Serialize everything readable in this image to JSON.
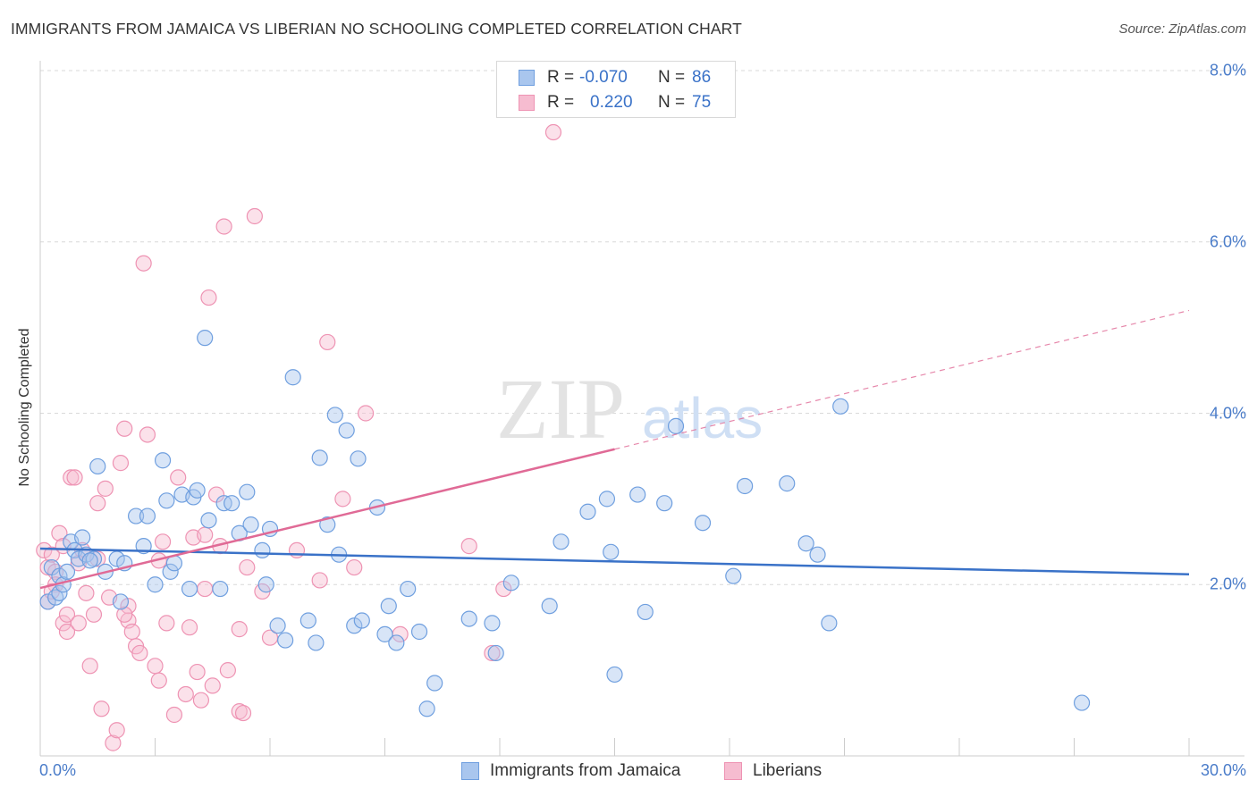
{
  "title": "IMMIGRANTS FROM JAMAICA VS LIBERIAN NO SCHOOLING COMPLETED CORRELATION CHART",
  "source": "Source: ZipAtlas.com",
  "watermark": {
    "zip": "ZIP",
    "atlas": "atlas"
  },
  "colors": {
    "blue": "#3a72c8",
    "blue_fill": "#a9c6ee",
    "blue_stroke": "#6f9fdf",
    "pink": "#e06a96",
    "pink_fill": "#f6bcd0",
    "pink_stroke": "#ee93b3",
    "grid": "#d9d9d9",
    "axis_text": "#4a7cc9"
  },
  "stats": {
    "r_label": "R =",
    "n_label": "N =",
    "rows": [
      {
        "r": "-0.070",
        "n": "86"
      },
      {
        "r": "0.220",
        "n": "75"
      }
    ]
  },
  "legend": [
    {
      "label": "Immigrants from Jamaica"
    },
    {
      "label": "Liberians"
    }
  ],
  "chart_data": {
    "type": "scatter",
    "title": "IMMIGRANTS FROM JAMAICA VS LIBERIAN NO SCHOOLING COMPLETED CORRELATION CHART",
    "xlabel": "",
    "ylabel": "No Schooling Completed",
    "xlim": [
      0,
      30
    ],
    "ylim": [
      0,
      8
    ],
    "x_tick_labels": [
      {
        "value": 0,
        "label": "0.0%"
      },
      {
        "value": 30,
        "label": "30.0%"
      }
    ],
    "y_tick_labels": [
      {
        "value": 2,
        "label": "2.0%"
      },
      {
        "value": 4,
        "label": "4.0%"
      },
      {
        "value": 6,
        "label": "6.0%"
      },
      {
        "value": 8,
        "label": "8.0%"
      }
    ],
    "grid": true,
    "series": [
      {
        "name": "Immigrants from Jamaica",
        "color": "blue",
        "trend": {
          "x0": 0,
          "y0": 2.42,
          "x1": 30,
          "y1": 2.12,
          "dashed_from": 30
        },
        "points": [
          [
            0.2,
            1.8
          ],
          [
            0.3,
            2.2
          ],
          [
            0.4,
            1.85
          ],
          [
            0.5,
            1.9
          ],
          [
            0.5,
            2.1
          ],
          [
            0.6,
            2.0
          ],
          [
            0.7,
            2.15
          ],
          [
            0.8,
            2.5
          ],
          [
            0.9,
            2.4
          ],
          [
            1.0,
            2.3
          ],
          [
            1.1,
            2.55
          ],
          [
            1.2,
            2.35
          ],
          [
            1.4,
            2.3
          ],
          [
            1.5,
            3.38
          ],
          [
            1.7,
            2.15
          ],
          [
            2.0,
            2.3
          ],
          [
            2.2,
            2.25
          ],
          [
            2.5,
            2.8
          ],
          [
            2.7,
            2.45
          ],
          [
            2.8,
            2.8
          ],
          [
            3.0,
            2.0
          ],
          [
            3.2,
            3.45
          ],
          [
            3.3,
            2.98
          ],
          [
            3.4,
            2.15
          ],
          [
            3.5,
            2.25
          ],
          [
            3.7,
            3.05
          ],
          [
            3.9,
            1.95
          ],
          [
            4.0,
            3.02
          ],
          [
            4.1,
            3.1
          ],
          [
            4.3,
            4.88
          ],
          [
            4.4,
            2.75
          ],
          [
            4.7,
            1.95
          ],
          [
            4.8,
            2.95
          ],
          [
            5.0,
            2.95
          ],
          [
            5.2,
            2.6
          ],
          [
            5.4,
            3.08
          ],
          [
            5.5,
            2.7
          ],
          [
            5.8,
            2.4
          ],
          [
            5.9,
            2.0
          ],
          [
            6.0,
            2.65
          ],
          [
            6.2,
            1.52
          ],
          [
            6.4,
            1.35
          ],
          [
            6.6,
            4.42
          ],
          [
            7.0,
            1.58
          ],
          [
            7.2,
            1.32
          ],
          [
            7.3,
            3.48
          ],
          [
            7.5,
            2.7
          ],
          [
            7.7,
            3.98
          ],
          [
            7.8,
            2.35
          ],
          [
            8.0,
            3.8
          ],
          [
            8.2,
            1.52
          ],
          [
            8.3,
            3.47
          ],
          [
            8.4,
            1.58
          ],
          [
            8.8,
            2.9
          ],
          [
            9.0,
            1.42
          ],
          [
            9.1,
            1.75
          ],
          [
            9.3,
            1.32
          ],
          [
            9.6,
            1.95
          ],
          [
            9.9,
            1.45
          ],
          [
            10.1,
            0.55
          ],
          [
            10.3,
            0.85
          ],
          [
            11.2,
            1.6
          ],
          [
            11.8,
            1.55
          ],
          [
            11.9,
            1.2
          ],
          [
            12.3,
            2.02
          ],
          [
            13.3,
            1.75
          ],
          [
            13.6,
            2.5
          ],
          [
            14.3,
            2.85
          ],
          [
            14.8,
            3.0
          ],
          [
            14.9,
            2.38
          ],
          [
            15.0,
            0.95
          ],
          [
            15.6,
            3.05
          ],
          [
            15.8,
            1.68
          ],
          [
            16.3,
            2.95
          ],
          [
            16.6,
            3.85
          ],
          [
            17.3,
            2.72
          ],
          [
            18.1,
            2.1
          ],
          [
            18.4,
            3.15
          ],
          [
            19.5,
            3.18
          ],
          [
            20.0,
            2.48
          ],
          [
            20.3,
            2.35
          ],
          [
            20.6,
            1.55
          ],
          [
            20.9,
            4.08
          ],
          [
            27.2,
            0.62
          ],
          [
            1.3,
            2.28
          ],
          [
            2.1,
            1.8
          ]
        ]
      },
      {
        "name": "Liberians",
        "color": "pink",
        "trend": {
          "x0": 0,
          "y0": 1.96,
          "x1": 30,
          "y1": 5.2,
          "dashed_from": 15
        },
        "points": [
          [
            0.1,
            2.4
          ],
          [
            0.2,
            2.2
          ],
          [
            0.2,
            1.8
          ],
          [
            0.3,
            2.35
          ],
          [
            0.4,
            2.15
          ],
          [
            0.5,
            2.6
          ],
          [
            0.6,
            2.45
          ],
          [
            0.6,
            1.55
          ],
          [
            0.7,
            1.45
          ],
          [
            0.7,
            1.65
          ],
          [
            0.8,
            3.25
          ],
          [
            0.9,
            3.25
          ],
          [
            1.0,
            1.55
          ],
          [
            1.1,
            2.4
          ],
          [
            1.2,
            1.9
          ],
          [
            1.3,
            1.05
          ],
          [
            1.4,
            1.65
          ],
          [
            1.5,
            2.3
          ],
          [
            1.5,
            2.95
          ],
          [
            1.6,
            0.55
          ],
          [
            1.7,
            3.12
          ],
          [
            1.8,
            1.85
          ],
          [
            1.9,
            0.15
          ],
          [
            2.0,
            0.3
          ],
          [
            2.1,
            3.42
          ],
          [
            2.2,
            3.82
          ],
          [
            2.3,
            1.75
          ],
          [
            2.3,
            1.58
          ],
          [
            2.4,
            1.45
          ],
          [
            2.5,
            1.28
          ],
          [
            2.6,
            1.2
          ],
          [
            2.7,
            5.75
          ],
          [
            2.8,
            3.75
          ],
          [
            3.0,
            1.05
          ],
          [
            3.1,
            0.88
          ],
          [
            3.2,
            2.5
          ],
          [
            3.3,
            1.55
          ],
          [
            3.5,
            0.48
          ],
          [
            3.6,
            3.25
          ],
          [
            3.8,
            0.72
          ],
          [
            3.9,
            1.5
          ],
          [
            4.0,
            2.55
          ],
          [
            4.1,
            0.98
          ],
          [
            4.2,
            0.65
          ],
          [
            4.3,
            2.58
          ],
          [
            4.4,
            5.35
          ],
          [
            4.5,
            0.82
          ],
          [
            4.6,
            3.05
          ],
          [
            4.7,
            2.45
          ],
          [
            4.8,
            6.18
          ],
          [
            4.9,
            1.0
          ],
          [
            5.2,
            0.52
          ],
          [
            5.3,
            0.5
          ],
          [
            5.4,
            2.2
          ],
          [
            5.6,
            6.3
          ],
          [
            5.8,
            1.92
          ],
          [
            6.0,
            1.38
          ],
          [
            7.3,
            2.05
          ],
          [
            7.5,
            4.83
          ],
          [
            7.9,
            3.0
          ],
          [
            8.2,
            2.2
          ],
          [
            8.5,
            4.0
          ],
          [
            9.4,
            1.42
          ],
          [
            11.2,
            2.45
          ],
          [
            11.8,
            1.2
          ],
          [
            12.1,
            1.95
          ],
          [
            13.4,
            7.28
          ],
          [
            0.4,
            2.0
          ],
          [
            1.0,
            2.25
          ],
          [
            2.2,
            1.65
          ],
          [
            3.1,
            2.28
          ],
          [
            0.3,
            1.92
          ],
          [
            5.2,
            1.48
          ],
          [
            6.7,
            2.4
          ],
          [
            4.3,
            1.95
          ]
        ]
      }
    ]
  }
}
